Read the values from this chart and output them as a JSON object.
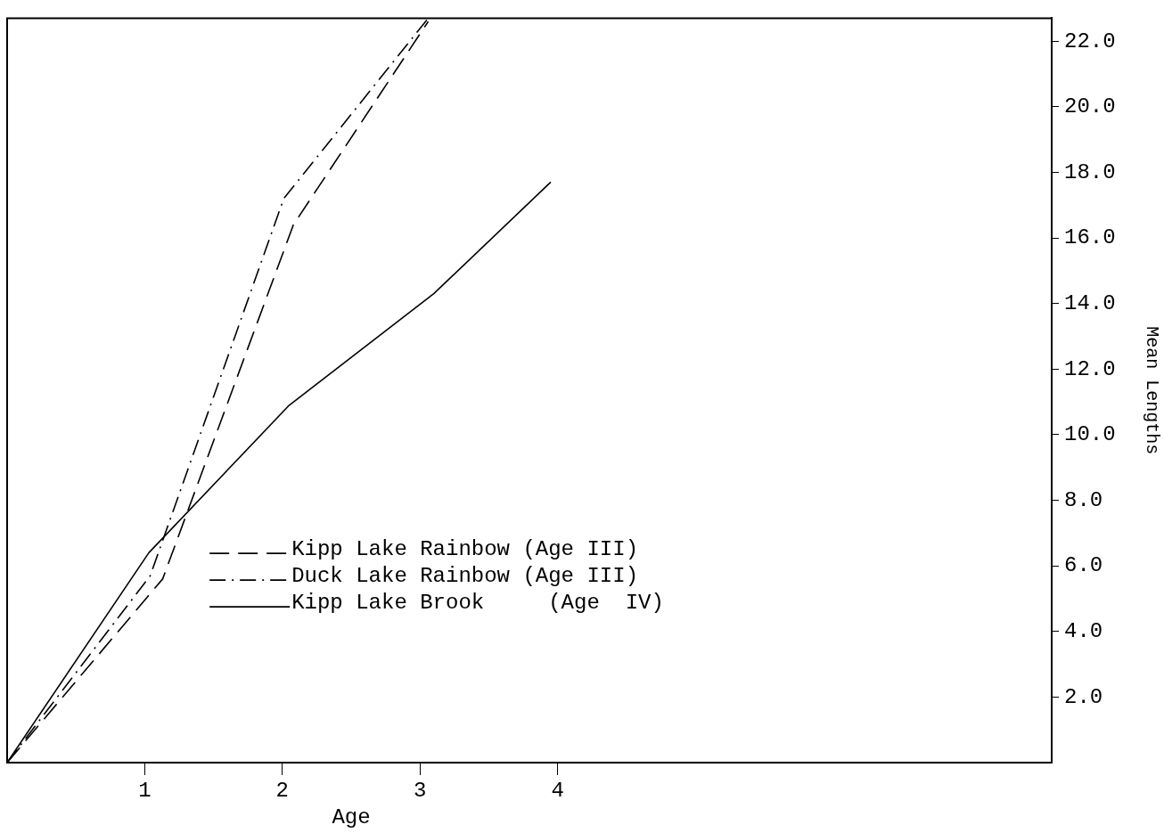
{
  "chart_data": {
    "type": "line",
    "xlabel": "Age",
    "ylabel": "Mean Lengths",
    "xlim": [
      0,
      7.59
    ],
    "xticks": [
      1,
      2,
      3,
      4
    ],
    "ylim": [
      0,
      22.7
    ],
    "yticks": [
      {
        "value": 2,
        "label": "2.0"
      },
      {
        "value": 4,
        "label": "4.0"
      },
      {
        "value": 6,
        "label": "6.0"
      },
      {
        "value": 8,
        "label": "8.0"
      },
      {
        "value": 10,
        "label": "10.0"
      },
      {
        "value": 12,
        "label": "12.0"
      },
      {
        "value": 14,
        "label": "14.0"
      },
      {
        "value": 16,
        "label": "16.0"
      },
      {
        "value": 18,
        "label": "18.0"
      },
      {
        "value": 20,
        "label": "20.0"
      },
      {
        "value": 22,
        "label": "22.0"
      }
    ],
    "grid": false,
    "legend": "center",
    "series": [
      {
        "name": "Kipp Lake Rainbow (Age III)",
        "color": "#000000",
        "line_style": "dashed",
        "x": [
          0,
          1.13,
          2.08,
          3.06
        ],
        "values": [
          0,
          5.6,
          16.4,
          22.6
        ]
      },
      {
        "name": "Duck Lake Rainbow (Age III)",
        "color": "#000000",
        "line_style": "dashdot",
        "x": [
          0,
          1.04,
          2.01,
          3.06
        ],
        "values": [
          0,
          5.7,
          17.2,
          22.7
        ]
      },
      {
        "name": "Kipp Lake Brook     (Age  IV)",
        "color": "#000000",
        "line_style": "solid",
        "x": [
          0,
          1.03,
          2.05,
          3.1,
          3.95
        ],
        "values": [
          0,
          6.4,
          10.9,
          14.3,
          17.7
        ]
      }
    ]
  }
}
